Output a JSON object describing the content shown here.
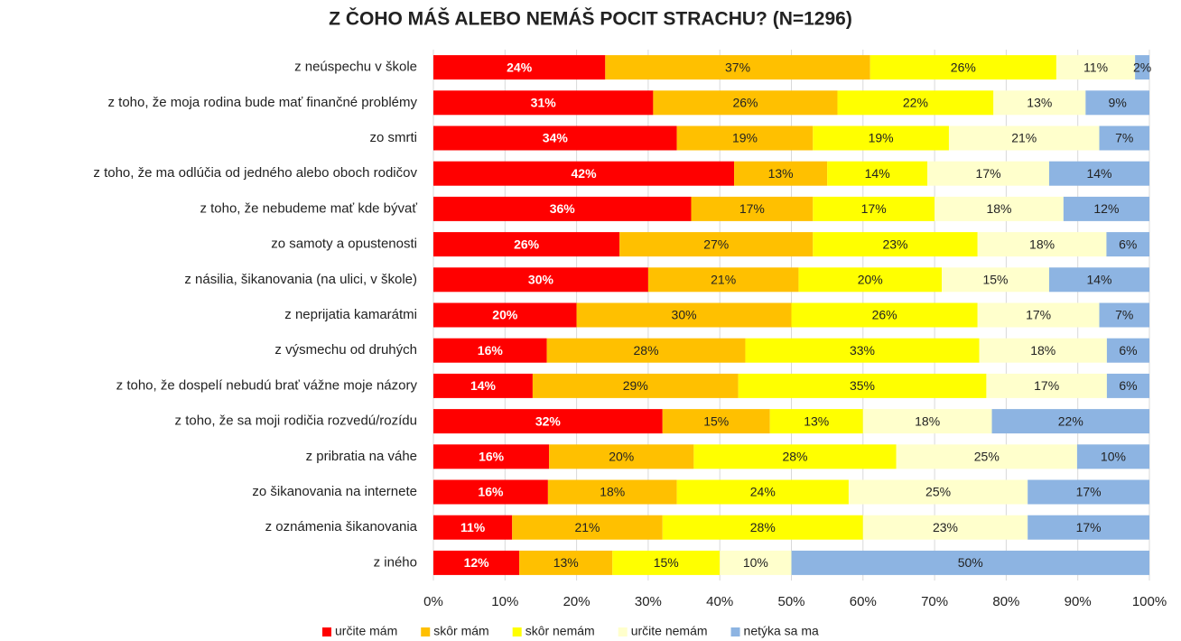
{
  "chart_data": {
    "type": "bar",
    "orientation": "horizontal",
    "stacked": "percent",
    "title": "Z ČOHO MÁŠ ALEBO NEMÁŠ POCIT STRACHU? (N=1296)",
    "categories": [
      "z neúspechu v škole",
      "z toho, že moja rodina bude mať finančné problémy",
      "zo smrti",
      "z toho, že ma odlúčia od jedného alebo oboch rodičov",
      "z toho, že nebudeme mať kde bývať",
      "zo samoty a opustenosti",
      "z násilia, šikanovania (na ulici, v škole)",
      "z neprijatia kamarátmi",
      "z výsmechu od druhých",
      "z toho, že dospelí nebudú brať vážne moje názory",
      "z toho, že sa moji rodičia rozvedú/rozídu",
      "z pribratia na váhe",
      "zo šikanovania na internete",
      "z oznámenia šikanovania",
      "z iného"
    ],
    "series": [
      {
        "name": "určite mám",
        "color": "#ff0000",
        "values": [
          24,
          31,
          34,
          42,
          36,
          26,
          30,
          20,
          16,
          14,
          32,
          16,
          16,
          11,
          12
        ],
        "value_labels": [
          "24%",
          "31%",
          "34%",
          "42%",
          "36%",
          "26%",
          "30%",
          "20%",
          "16%",
          "14%",
          "32%",
          "16%",
          "16%",
          "11%",
          "12%"
        ]
      },
      {
        "name": "skôr mám",
        "color": "#ffc000",
        "values": [
          37,
          26,
          19,
          13,
          17,
          27,
          21,
          30,
          28,
          29,
          15,
          20,
          18,
          21,
          13
        ],
        "value_labels": [
          "37%",
          "26%",
          "19%",
          "13%",
          "17%",
          "27%",
          "21%",
          "30%",
          "28%",
          "29%",
          "15%",
          "20%",
          "18%",
          "21%",
          "13%"
        ]
      },
      {
        "name": "skôr nemám",
        "color": "#ffff00",
        "values": [
          26,
          22,
          19,
          14,
          17,
          23,
          20,
          26,
          33,
          35,
          13,
          28,
          24,
          28,
          15
        ],
        "value_labels": [
          "26%",
          "22%",
          "19%",
          "14%",
          "17%",
          "23%",
          "20%",
          "26%",
          "33%",
          "35%",
          "13%",
          "28%",
          "24%",
          "28%",
          "15%"
        ]
      },
      {
        "name": "určite nemám",
        "color": "#ffffcc",
        "values": [
          11,
          13,
          21,
          17,
          18,
          18,
          15,
          17,
          18,
          17,
          18,
          25,
          25,
          23,
          10
        ],
        "value_labels": [
          "11%",
          "13%",
          "21%",
          "17%",
          "18%",
          "18%",
          "15%",
          "17%",
          "18%",
          "17%",
          "18%",
          "25%",
          "25%",
          "23%",
          "10%"
        ]
      },
      {
        "name": "netýka sa ma",
        "color": "#8db4e2",
        "values": [
          2,
          9,
          7,
          14,
          12,
          6,
          14,
          7,
          6,
          6,
          22,
          10,
          17,
          17,
          50
        ],
        "value_labels": [
          "2%",
          "9%",
          "7%",
          "14%",
          "12%",
          "6%",
          "14%",
          "7%",
          "6%",
          "6%",
          "22%",
          "10%",
          "17%",
          "17%",
          "50%"
        ]
      }
    ],
    "xlim": [
      0,
      100
    ],
    "xticks": [
      {
        "value": 0,
        "label": "0%"
      },
      {
        "value": 10,
        "label": "10%"
      },
      {
        "value": 20,
        "label": "20%"
      },
      {
        "value": 30,
        "label": "30%"
      },
      {
        "value": 40,
        "label": "40%"
      },
      {
        "value": 50,
        "label": "50%"
      },
      {
        "value": 60,
        "label": "60%"
      },
      {
        "value": 70,
        "label": "70%"
      },
      {
        "value": 80,
        "label": "80%"
      },
      {
        "value": 90,
        "label": "90%"
      },
      {
        "value": 100,
        "label": "100%"
      }
    ],
    "grid": true,
    "legend": "bottom"
  }
}
